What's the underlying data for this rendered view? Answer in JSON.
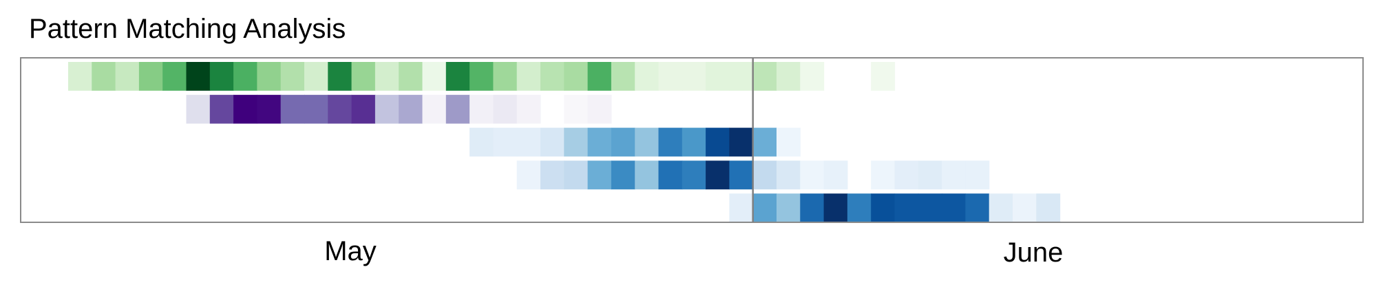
{
  "chart_data": {
    "type": "heatmap",
    "title": "Pattern Matching Analysis",
    "x_tick_labels": [
      "May",
      "June"
    ],
    "rows": [
      {
        "colormap": "Greens",
        "cells": [
          {
            "d": "May 3",
            "v": 0.18
          },
          {
            "d": "May 4",
            "v": 0.35
          },
          {
            "d": "May 5",
            "v": 0.25
          },
          {
            "d": "May 6",
            "v": 0.45
          },
          {
            "d": "May 7",
            "v": 0.58
          },
          {
            "d": "May 8",
            "v": 1.0
          },
          {
            "d": "May 9",
            "v": 0.78
          },
          {
            "d": "May 10",
            "v": 0.6
          },
          {
            "d": "May 11",
            "v": 0.42
          },
          {
            "d": "May 12",
            "v": 0.32
          },
          {
            "d": "May 13",
            "v": 0.2
          },
          {
            "d": "May 14",
            "v": 0.78
          },
          {
            "d": "May 15",
            "v": 0.4
          },
          {
            "d": "May 16",
            "v": 0.2
          },
          {
            "d": "May 17",
            "v": 0.32
          },
          {
            "d": "May 18",
            "v": 0.08
          },
          {
            "d": "May 19",
            "v": 0.78
          },
          {
            "d": "May 20",
            "v": 0.58
          },
          {
            "d": "May 21",
            "v": 0.38
          },
          {
            "d": "May 22",
            "v": 0.2
          },
          {
            "d": "May 23",
            "v": 0.3
          },
          {
            "d": "May 24",
            "v": 0.35
          },
          {
            "d": "May 25",
            "v": 0.6
          },
          {
            "d": "May 26",
            "v": 0.3
          },
          {
            "d": "May 27",
            "v": 0.14
          },
          {
            "d": "May 28",
            "v": 0.1
          },
          {
            "d": "May 29",
            "v": 0.1
          },
          {
            "d": "May 30",
            "v": 0.14
          },
          {
            "d": "May 31",
            "v": 0.14
          },
          {
            "d": "Jun 1",
            "v": 0.28
          },
          {
            "d": "Jun 2",
            "v": 0.18
          },
          {
            "d": "Jun 3",
            "v": 0.06
          },
          {
            "d": "Jun 6",
            "v": 0.05
          }
        ]
      },
      {
        "colormap": "Purples",
        "cells": [
          {
            "d": "May 8",
            "v": 0.22
          },
          {
            "d": "May 9",
            "v": 0.78
          },
          {
            "d": "May 10",
            "v": 1.0
          },
          {
            "d": "May 11",
            "v": 0.98
          },
          {
            "d": "May 12",
            "v": 0.68
          },
          {
            "d": "May 13",
            "v": 0.68
          },
          {
            "d": "May 14",
            "v": 0.78
          },
          {
            "d": "May 15",
            "v": 0.85
          },
          {
            "d": "May 16",
            "v": 0.35
          },
          {
            "d": "May 17",
            "v": 0.45
          },
          {
            "d": "May 18",
            "v": 0.08
          },
          {
            "d": "May 19",
            "v": 0.5
          },
          {
            "d": "May 20",
            "v": 0.1
          },
          {
            "d": "May 21",
            "v": 0.15
          },
          {
            "d": "May 22",
            "v": 0.08
          },
          {
            "d": "May 24",
            "v": 0.04
          },
          {
            "d": "May 25",
            "v": 0.08
          }
        ]
      },
      {
        "colormap": "Blues",
        "cells": [
          {
            "d": "May 20",
            "v": 0.12
          },
          {
            "d": "May 21",
            "v": 0.1
          },
          {
            "d": "May 22",
            "v": 0.1
          },
          {
            "d": "May 23",
            "v": 0.16
          },
          {
            "d": "May 24",
            "v": 0.35
          },
          {
            "d": "May 25",
            "v": 0.5
          },
          {
            "d": "May 26",
            "v": 0.55
          },
          {
            "d": "May 27",
            "v": 0.4
          },
          {
            "d": "May 28",
            "v": 0.7
          },
          {
            "d": "May 29",
            "v": 0.6
          },
          {
            "d": "May 30",
            "v": 0.9
          },
          {
            "d": "May 31",
            "v": 1.0
          },
          {
            "d": "Jun 1",
            "v": 0.5
          },
          {
            "d": "Jun 2",
            "v": 0.05
          }
        ]
      },
      {
        "colormap": "Blues",
        "cells": [
          {
            "d": "May 22",
            "v": 0.06
          },
          {
            "d": "May 23",
            "v": 0.22
          },
          {
            "d": "May 24",
            "v": 0.26
          },
          {
            "d": "May 25",
            "v": 0.5
          },
          {
            "d": "May 26",
            "v": 0.65
          },
          {
            "d": "May 27",
            "v": 0.4
          },
          {
            "d": "May 28",
            "v": 0.75
          },
          {
            "d": "May 29",
            "v": 0.7
          },
          {
            "d": "May 30",
            "v": 1.0
          },
          {
            "d": "May 31",
            "v": 0.75
          },
          {
            "d": "Jun 1",
            "v": 0.26
          },
          {
            "d": "Jun 2",
            "v": 0.15
          },
          {
            "d": "Jun 3",
            "v": 0.05
          },
          {
            "d": "Jun 4",
            "v": 0.08
          },
          {
            "d": "Jun 6",
            "v": 0.05
          },
          {
            "d": "Jun 7",
            "v": 0.1
          },
          {
            "d": "Jun 8",
            "v": 0.12
          },
          {
            "d": "Jun 9",
            "v": 0.08
          },
          {
            "d": "Jun 10",
            "v": 0.08
          }
        ]
      },
      {
        "colormap": "Blues",
        "cells": [
          {
            "d": "May 31",
            "v": 0.1
          },
          {
            "d": "Jun 1",
            "v": 0.55
          },
          {
            "d": "Jun 2",
            "v": 0.4
          },
          {
            "d": "Jun 3",
            "v": 0.78
          },
          {
            "d": "Jun 4",
            "v": 1.0
          },
          {
            "d": "Jun 5",
            "v": 0.7
          },
          {
            "d": "Jun 6",
            "v": 0.88
          },
          {
            "d": "Jun 7",
            "v": 0.85
          },
          {
            "d": "Jun 8",
            "v": 0.85
          },
          {
            "d": "Jun 9",
            "v": 0.85
          },
          {
            "d": "Jun 10",
            "v": 0.78
          },
          {
            "d": "Jun 11",
            "v": 0.12
          },
          {
            "d": "Jun 12",
            "v": 0.06
          },
          {
            "d": "Jun 13",
            "v": 0.15
          }
        ]
      }
    ],
    "reference_line": "Jun 1",
    "grid": false,
    "legend": "none"
  }
}
